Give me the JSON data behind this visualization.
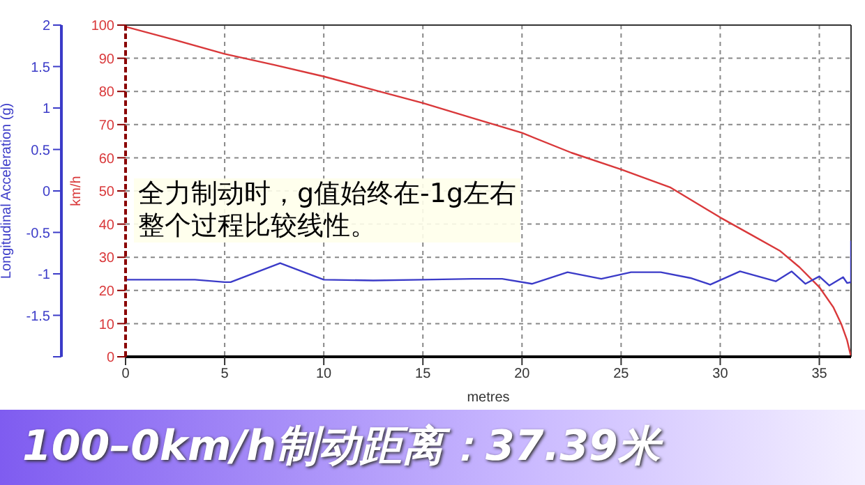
{
  "chart_data": {
    "type": "line",
    "title": "100–0km/h制动距离：37.39米",
    "xlabel": "metres",
    "ylabel": "km/h",
    "y2label": "Longitudinal Acceleration (g)",
    "annotations": [
      "全力制动时，g值始终在-1g左右",
      "整个过程比较线性。"
    ],
    "xlim": [
      0,
      36.6
    ],
    "xticks": [
      0,
      5,
      10,
      15,
      20,
      25,
      30,
      35
    ],
    "ylim": [
      0,
      100
    ],
    "yticks": [
      0,
      10,
      20,
      30,
      40,
      50,
      60,
      70,
      80,
      90,
      100
    ],
    "y2lim": [
      -2,
      2
    ],
    "y2ticks": [
      {
        "value": -2,
        "label": null
      },
      -1.5,
      -1,
      -0.5,
      0,
      0.5,
      1,
      1.5,
      2
    ],
    "grid": true,
    "marker": "none",
    "line_style": "solid",
    "series": [
      {
        "color": "#d9383a",
        "x": [
          0,
          2.5,
          5,
          7.5,
          10,
          12.5,
          15,
          17.5,
          20,
          22.5,
          25,
          27.5,
          30,
          31.5,
          33,
          34,
          35,
          35.7,
          36.1,
          36.4,
          36.6
        ],
        "values": [
          99.5,
          95.5,
          91.3,
          88,
          84.5,
          80.5,
          76.5,
          72,
          67.5,
          61.5,
          56.5,
          51,
          42,
          37,
          32,
          27,
          21,
          15,
          10,
          5,
          0
        ]
      },
      {
        "color": "#3b3bc8",
        "axis": "y2",
        "x": [
          0,
          3.5,
          5,
          5.3,
          7.8,
          10,
          12.5,
          15,
          17.5,
          19,
          20.5,
          22.3,
          24,
          25.5,
          27,
          28.5,
          29.5,
          31,
          32.8,
          33.6,
          34.3,
          35,
          35.5,
          36.2,
          36.4,
          36.6,
          36.6
        ],
        "values": [
          -1.07,
          -1.07,
          -1.1,
          -1.1,
          -0.87,
          -1.07,
          -1.08,
          -1.07,
          -1.06,
          -1.06,
          -1.12,
          -0.98,
          -1.06,
          -0.98,
          -0.98,
          -1.05,
          -1.13,
          -0.97,
          -1.09,
          -0.97,
          -1.12,
          -1.03,
          -1.14,
          -1.04,
          -1.11,
          -1.1,
          -0.6
        ]
      }
    ]
  }
}
